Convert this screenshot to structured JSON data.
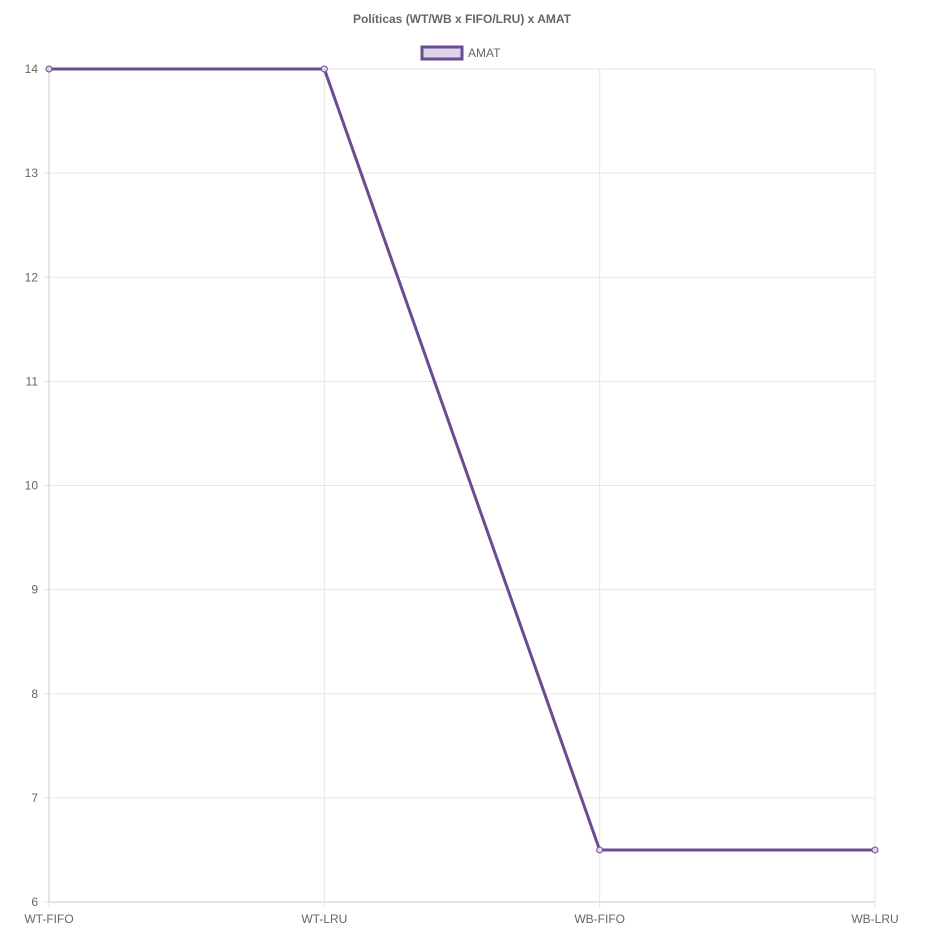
{
  "chart_data": {
    "type": "line",
    "title": "Políticas (WT/WB x FIFO/LRU) x AMAT",
    "xlabel": "",
    "ylabel": "",
    "categories": [
      "WT-FIFO",
      "WT-LRU",
      "WB-FIFO",
      "WB-LRU"
    ],
    "series": [
      {
        "name": "AMAT",
        "values": [
          14,
          14,
          6.5,
          6.5
        ],
        "color": "#6b4c93",
        "fill_color": "#ddd3ea"
      }
    ],
    "ylim": [
      6,
      14
    ],
    "yticks": [
      6,
      7,
      8,
      9,
      10,
      11,
      12,
      13,
      14
    ],
    "grid": true,
    "legend_position": "top"
  }
}
